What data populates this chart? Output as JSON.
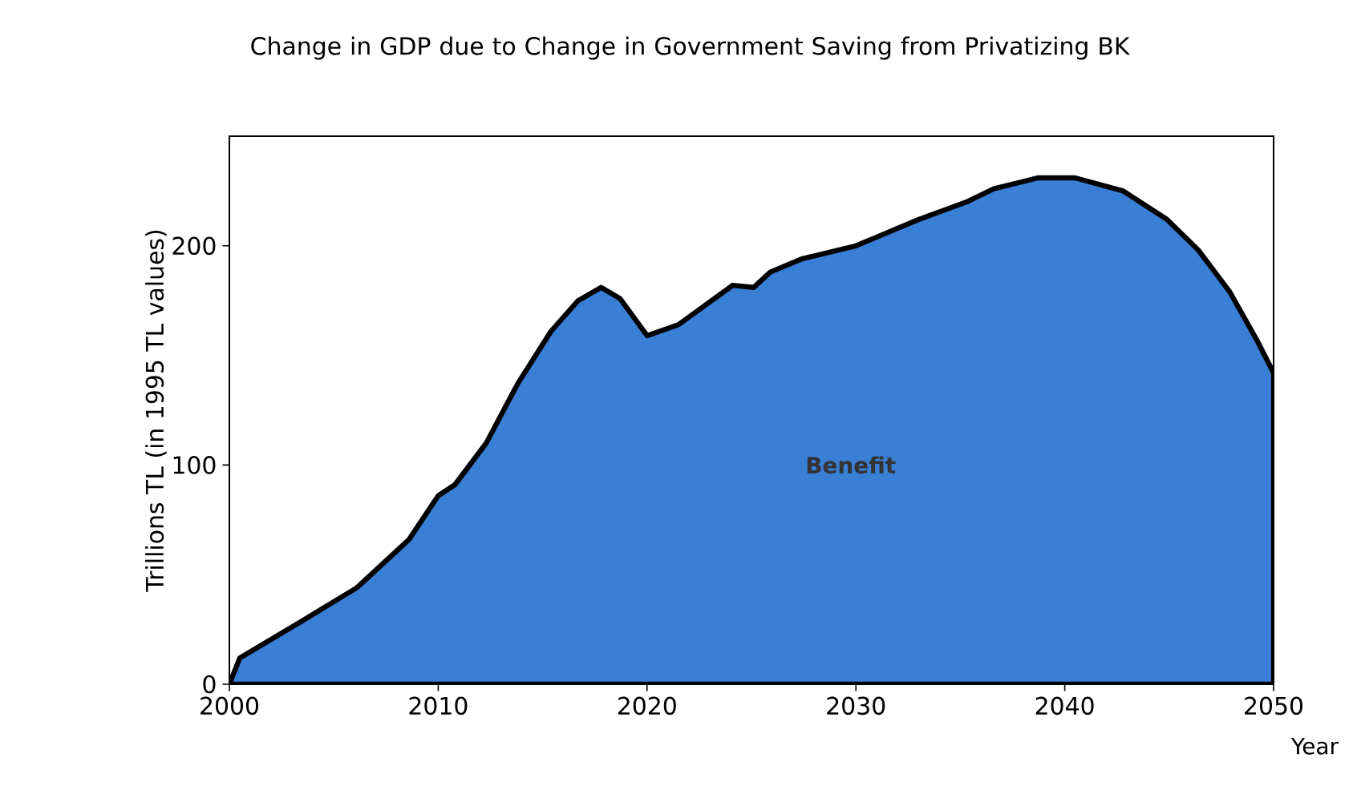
{
  "chart_data": {
    "type": "area",
    "title": "Change in GDP due to Change in Government Saving from Privatizing BK",
    "xlabel": "Year",
    "ylabel": "Trillions TL (in 1995 TL values)",
    "x": [
      2000,
      2000.5,
      2003.5,
      2006.1,
      2008.6,
      2010,
      2010.8,
      2012.3,
      2013.8,
      2015.4,
      2016.7,
      2017.8,
      2018.7,
      2020,
      2021.5,
      2024.1,
      2025.1,
      2025.9,
      2027.4,
      2030,
      2031,
      2033,
      2035.3,
      2036.6,
      2038.7,
      2040.5,
      2042.8,
      2044.9,
      2046.4,
      2047.9,
      2049.2,
      2050
    ],
    "series": [
      {
        "color": "#3a7fd6",
        "values": [
          0,
          12,
          29,
          44,
          66,
          86,
          91,
          110,
          137,
          161,
          175,
          181,
          176,
          159,
          164,
          182,
          181,
          188,
          194,
          200,
          204,
          212,
          220,
          226,
          231,
          231,
          225,
          212,
          198,
          179,
          157,
          142
        ]
      }
    ],
    "xlim": [
      2000,
      2050
    ],
    "ylim": [
      0,
      250
    ],
    "xticks": [
      2000,
      2010,
      2020,
      2030,
      2040,
      2050
    ],
    "yticks": [
      0,
      100,
      200
    ],
    "annotations": [
      "Benefit"
    ]
  }
}
